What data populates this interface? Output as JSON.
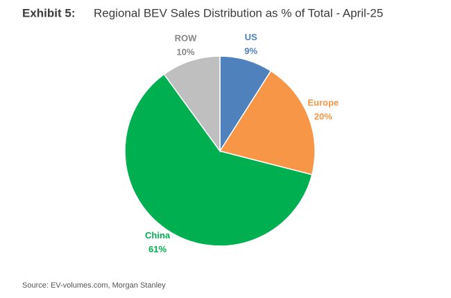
{
  "chart_data": {
    "type": "pie",
    "exhibit": "Exhibit 5:",
    "title": "Regional BEV Sales Distribution as % of Total - April-25",
    "categories": [
      "US",
      "Europe",
      "China",
      "ROW"
    ],
    "values": [
      9,
      20,
      61,
      10
    ],
    "value_labels": [
      "9%",
      "20%",
      "61%",
      "10%"
    ],
    "colors": [
      "#4f81bd",
      "#f79646",
      "#00b050",
      "#bfbfbf"
    ],
    "source": "Source: EV-volumes.com, Morgan Stanley"
  }
}
